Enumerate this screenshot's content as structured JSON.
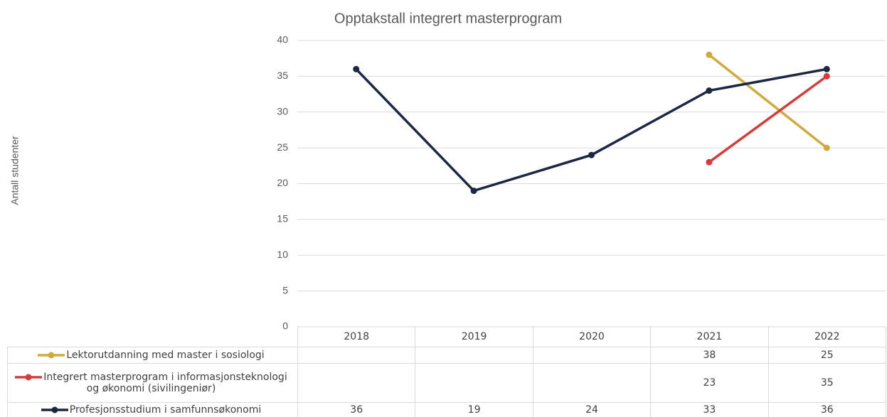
{
  "chart_data": {
    "type": "line",
    "title": "Opptakstall integrert masterprogram",
    "y_label": "Antall studenter",
    "categories": [
      "2018",
      "2019",
      "2020",
      "2021",
      "2022"
    ],
    "series": [
      {
        "name": "Lektorutdanning med master i sosiologi",
        "color": "#cfab3e",
        "values": [
          null,
          null,
          null,
          38,
          25
        ]
      },
      {
        "name": "Integrert masterprogram i informasjonsteknologi og økonomi (sivilingeniør)",
        "color": "#d63b3b",
        "values": [
          null,
          null,
          null,
          23,
          35
        ]
      },
      {
        "name": "Profesjonsstudium i samfunnsøkonomi",
        "color": "#1b2745",
        "values": [
          36,
          19,
          24,
          33,
          36
        ]
      }
    ],
    "ylim": [
      0,
      40
    ],
    "yticks": [
      0,
      5,
      10,
      15,
      20,
      25,
      30,
      35,
      40
    ],
    "grid": true,
    "data_table": true
  }
}
